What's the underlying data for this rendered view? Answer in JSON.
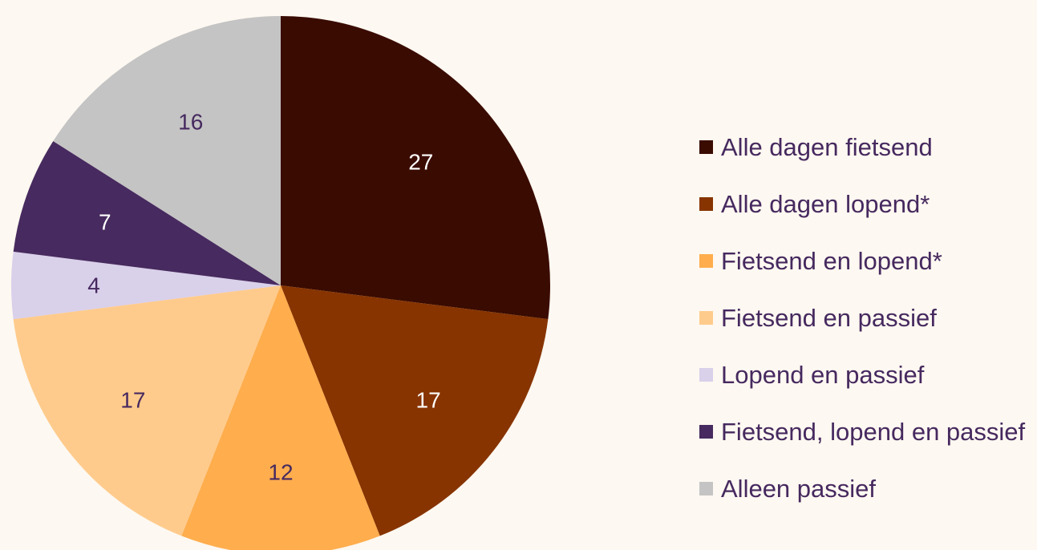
{
  "chart_data": {
    "type": "pie",
    "start_angle_deg": 0,
    "direction": "clockwise",
    "legend_position": "right",
    "slices": [
      {
        "label": "Alle dagen fietsend",
        "value": 27,
        "color": "#3a0b00",
        "label_color": "#ffffff"
      },
      {
        "label": "Alle dagen lopend*",
        "value": 17,
        "color": "#873400",
        "label_color": "#ffffff"
      },
      {
        "label": "Fietsend en lopend*",
        "value": 12,
        "color": "#ffad4d",
        "label_color": "#46295f"
      },
      {
        "label": "Fietsend en passief",
        "value": 17,
        "color": "#ffcb8c",
        "label_color": "#46295f"
      },
      {
        "label": "Lopend en passief",
        "value": 4,
        "color": "#d9d0ea",
        "label_color": "#46295f"
      },
      {
        "label": "Fietsend, lopend en passief",
        "value": 7,
        "color": "#472a5f",
        "label_color": "#ffffff"
      },
      {
        "label": "Alleen passief",
        "value": 16,
        "color": "#c4c4c4",
        "label_color": "#46295f"
      }
    ]
  }
}
